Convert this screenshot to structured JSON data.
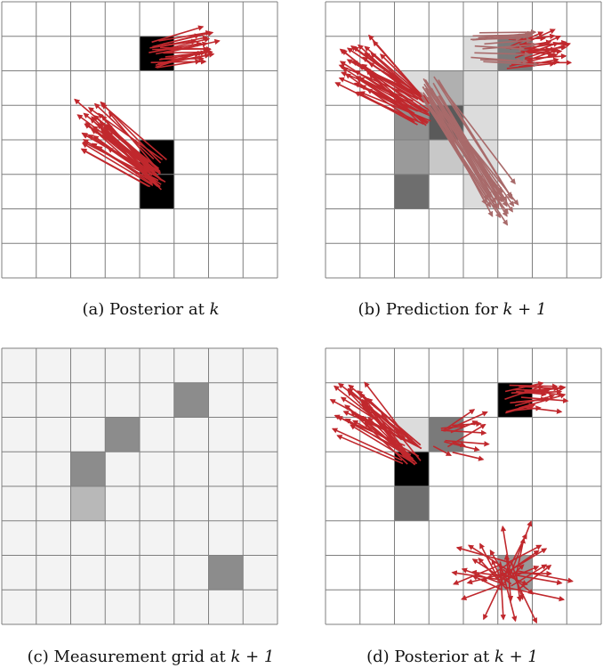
{
  "colors": {
    "grid_line": "#7f7f7f",
    "arrow": "#c0282d",
    "predicted_arrow": "#a86a6a",
    "background_cell": "#f3f3f3"
  },
  "panels": [
    {
      "id": "a",
      "caption_prefix": "(a) Posterior at",
      "caption_math": "k",
      "grid_size": 8,
      "cells": [
        {
          "col": 4,
          "row": 1,
          "shade": "#000000"
        },
        {
          "col": 4,
          "row": 4,
          "shade": "#000000"
        },
        {
          "col": 4,
          "row": 5,
          "shade": "#000000"
        }
      ],
      "arrow_clusters": [
        {
          "origin_col": 4.5,
          "origin_row": 1.5,
          "dir": [
            1.4,
            -0.2
          ],
          "spread": 0.5,
          "count": 22,
          "color": "#c0282d"
        },
        {
          "origin_col": 4.5,
          "origin_row": 5.0,
          "dir": [
            -1.8,
            -1.5
          ],
          "spread": 0.9,
          "count": 40,
          "color": "#c0282d"
        }
      ]
    },
    {
      "id": "b",
      "caption_prefix": "(b) Prediction for",
      "caption_math": "k + 1",
      "grid_size": 8,
      "cells": [
        {
          "col": 4,
          "row": 1,
          "shade": "#dcdcdc"
        },
        {
          "col": 5,
          "row": 1,
          "shade": "#7a7a7a"
        },
        {
          "col": 2,
          "row": 2,
          "shade": "#dcdcdc"
        },
        {
          "col": 3,
          "row": 2,
          "shade": "#b0b0b0"
        },
        {
          "col": 4,
          "row": 2,
          "shade": "#dcdcdc"
        },
        {
          "col": 2,
          "row": 3,
          "shade": "#909090"
        },
        {
          "col": 3,
          "row": 3,
          "shade": "#5a5a5a"
        },
        {
          "col": 4,
          "row": 3,
          "shade": "#dcdcdc"
        },
        {
          "col": 2,
          "row": 4,
          "shade": "#9a9a9a"
        },
        {
          "col": 3,
          "row": 4,
          "shade": "#c8c8c8"
        },
        {
          "col": 4,
          "row": 4,
          "shade": "#dcdcdc"
        },
        {
          "col": 2,
          "row": 5,
          "shade": "#6e6e6e"
        },
        {
          "col": 4,
          "row": 5,
          "shade": "#dcdcdc"
        }
      ],
      "arrow_clusters": [
        {
          "origin_col": 5.5,
          "origin_row": 1.5,
          "dir": [
            1.2,
            -0.2
          ],
          "spread": 0.6,
          "count": 22,
          "color": "#c0282d"
        },
        {
          "origin_col": 4.5,
          "origin_row": 1.3,
          "dir": [
            1.5,
            0.0
          ],
          "spread": 0.3,
          "count": 14,
          "color": "#a86a6a"
        },
        {
          "origin_col": 2.8,
          "origin_row": 3.2,
          "dir": [
            -1.9,
            -1.3
          ],
          "spread": 1.0,
          "count": 40,
          "color": "#c0282d"
        },
        {
          "origin_col": 3.0,
          "origin_row": 2.6,
          "dir": [
            2.0,
            3.2
          ],
          "spread": 0.7,
          "count": 30,
          "color": "#a86a6a"
        }
      ]
    },
    {
      "id": "c",
      "caption_prefix": "(c) Measurement grid at",
      "caption_math": "k + 1",
      "grid_size": 8,
      "background": "#f3f3f3",
      "cells": [
        {
          "col": 5,
          "row": 1,
          "shade": "#8c8c8c"
        },
        {
          "col": 3,
          "row": 2,
          "shade": "#8c8c8c"
        },
        {
          "col": 2,
          "row": 3,
          "shade": "#8c8c8c"
        },
        {
          "col": 2,
          "row": 4,
          "shade": "#b8b8b8"
        },
        {
          "col": 6,
          "row": 6,
          "shade": "#8c8c8c"
        }
      ],
      "arrow_clusters": []
    },
    {
      "id": "d",
      "caption_prefix": "(d) Posterior at",
      "caption_math": "k + 1",
      "grid_size": 8,
      "cells": [
        {
          "col": 5,
          "row": 1,
          "shade": "#000000"
        },
        {
          "col": 2,
          "row": 2,
          "shade": "#dcdcdc"
        },
        {
          "col": 3,
          "row": 2,
          "shade": "#7a7a7a"
        },
        {
          "col": 2,
          "row": 3,
          "shade": "#000000"
        },
        {
          "col": 2,
          "row": 4,
          "shade": "#6e6e6e"
        },
        {
          "col": 5,
          "row": 6,
          "shade": "#9a9a9a"
        }
      ],
      "arrow_clusters": [
        {
          "origin_col": 5.5,
          "origin_row": 1.5,
          "dir": [
            1.1,
            -0.1
          ],
          "spread": 0.6,
          "count": 20,
          "color": "#c0282d"
        },
        {
          "origin_col": 2.5,
          "origin_row": 3.0,
          "dir": [
            -1.6,
            -1.2
          ],
          "spread": 1.1,
          "count": 36,
          "color": "#c0282d"
        },
        {
          "origin_col": 3.4,
          "origin_row": 2.6,
          "dir": [
            0.8,
            -0.2
          ],
          "spread": 1.0,
          "count": 12,
          "color": "#c0282d"
        },
        {
          "origin_col": 5.3,
          "origin_row": 6.6,
          "dir": [
            0.0,
            0.0
          ],
          "spread": 1.8,
          "count": 40,
          "color": "#c0282d"
        }
      ]
    }
  ]
}
